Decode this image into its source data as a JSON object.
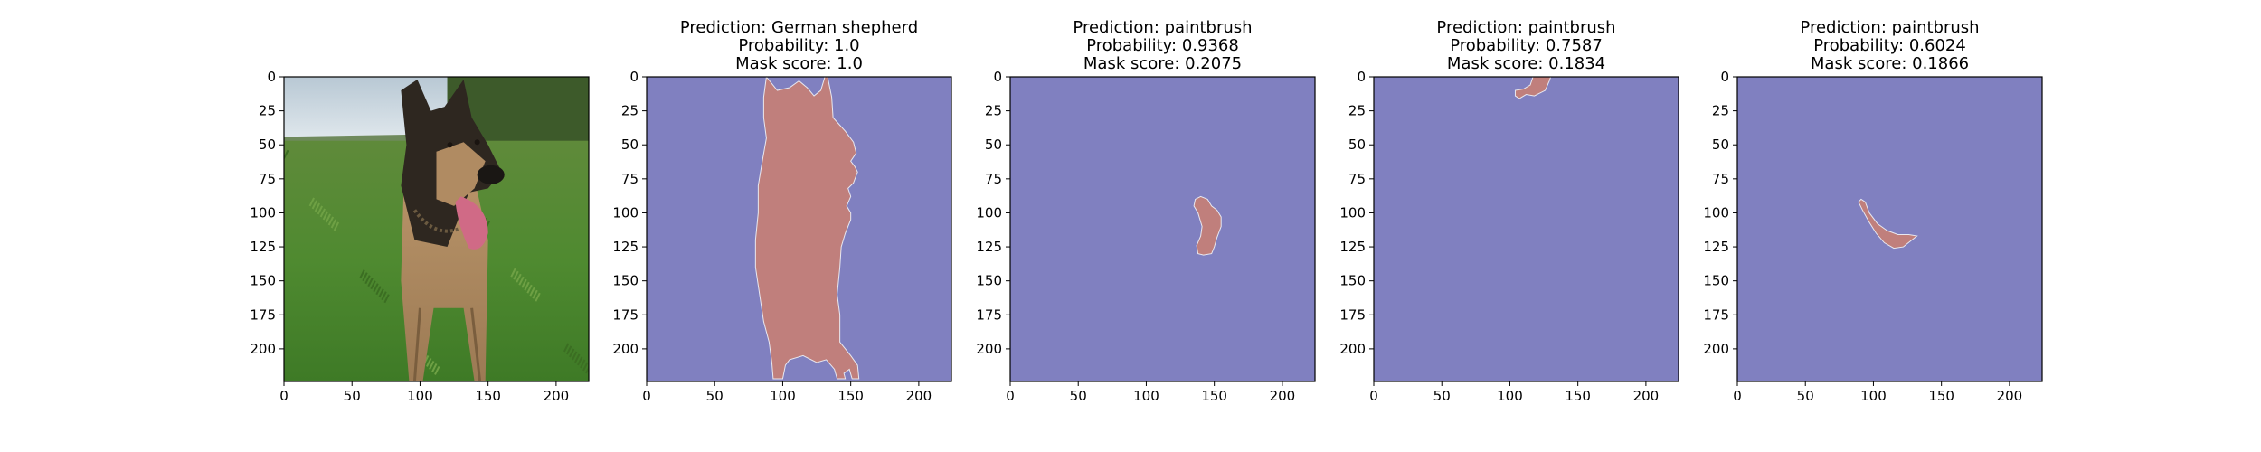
{
  "figure": {
    "panel_count": 5,
    "mask_background_color": "#8080c0",
    "mask_foreground_color": "#c07f7c",
    "axis_color": "#000000"
  },
  "chart_data": [
    {
      "type": "image",
      "subject": "german-shepherd-photo",
      "title_lines": [],
      "xlim": [
        0,
        224
      ],
      "ylim": [
        224,
        0
      ],
      "xticks": [
        0,
        50,
        100,
        150,
        200
      ],
      "yticks": [
        0,
        25,
        50,
        75,
        100,
        125,
        150,
        175,
        200
      ]
    },
    {
      "type": "heatmap",
      "title_lines": [
        "Prediction: German shepherd",
        "Probability: 1.0",
        "Mask score: 1.0"
      ],
      "xlim": [
        0,
        224
      ],
      "ylim": [
        224,
        0
      ],
      "xticks": [
        0,
        50,
        100,
        150,
        200
      ],
      "yticks": [
        0,
        25,
        50,
        75,
        100,
        125,
        150,
        175,
        200
      ],
      "mask_outline": [
        [
          88,
          0
        ],
        [
          96,
          10
        ],
        [
          105,
          8
        ],
        [
          112,
          3
        ],
        [
          118,
          8
        ],
        [
          123,
          14
        ],
        [
          128,
          10
        ],
        [
          131,
          0
        ],
        [
          133,
          0
        ],
        [
          136,
          15
        ],
        [
          137,
          30
        ],
        [
          146,
          40
        ],
        [
          152,
          48
        ],
        [
          154,
          56
        ],
        [
          150,
          62
        ],
        [
          153,
          66
        ],
        [
          155,
          70
        ],
        [
          152,
          78
        ],
        [
          148,
          82
        ],
        [
          150,
          88
        ],
        [
          147,
          95
        ],
        [
          150,
          100
        ],
        [
          150,
          105
        ],
        [
          146,
          115
        ],
        [
          143,
          125
        ],
        [
          142,
          140
        ],
        [
          140,
          160
        ],
        [
          142,
          175
        ],
        [
          142,
          195
        ],
        [
          150,
          205
        ],
        [
          155,
          212
        ],
        [
          156,
          222
        ],
        [
          151,
          222
        ],
        [
          149,
          215
        ],
        [
          145,
          218
        ],
        [
          146,
          222
        ],
        [
          140,
          222
        ],
        [
          138,
          215
        ],
        [
          132,
          208
        ],
        [
          125,
          210
        ],
        [
          115,
          205
        ],
        [
          105,
          208
        ],
        [
          102,
          212
        ],
        [
          100,
          222
        ],
        [
          93,
          222
        ],
        [
          92,
          210
        ],
        [
          90,
          195
        ],
        [
          86,
          180
        ],
        [
          83,
          160
        ],
        [
          80,
          140
        ],
        [
          80,
          120
        ],
        [
          82,
          100
        ],
        [
          82,
          80
        ],
        [
          85,
          62
        ],
        [
          88,
          45
        ],
        [
          86,
          30
        ],
        [
          86,
          15
        ]
      ]
    },
    {
      "type": "heatmap",
      "title_lines": [
        "Prediction: paintbrush",
        "Probability: 0.9368",
        "Mask score: 0.2075"
      ],
      "xlim": [
        0,
        224
      ],
      "ylim": [
        224,
        0
      ],
      "xticks": [
        0,
        50,
        100,
        150,
        200
      ],
      "yticks": [
        0,
        25,
        50,
        75,
        100,
        125,
        150,
        175,
        200
      ],
      "mask_outline": [
        [
          136,
          90
        ],
        [
          140,
          88
        ],
        [
          145,
          90
        ],
        [
          148,
          95
        ],
        [
          152,
          98
        ],
        [
          155,
          103
        ],
        [
          155,
          110
        ],
        [
          152,
          118
        ],
        [
          150,
          125
        ],
        [
          148,
          130
        ],
        [
          142,
          131
        ],
        [
          138,
          130
        ],
        [
          137,
          124
        ],
        [
          140,
          117
        ],
        [
          141,
          110
        ],
        [
          138,
          100
        ],
        [
          135,
          95
        ]
      ]
    },
    {
      "type": "heatmap",
      "title_lines": [
        "Prediction: paintbrush",
        "Probability: 0.7587",
        "Mask score: 0.1834"
      ],
      "xlim": [
        0,
        224
      ],
      "ylim": [
        224,
        0
      ],
      "xticks": [
        0,
        50,
        100,
        150,
        200
      ],
      "yticks": [
        0,
        25,
        50,
        75,
        100,
        125,
        150,
        175,
        200
      ],
      "mask_outline": [
        [
          117,
          0
        ],
        [
          130,
          0
        ],
        [
          129,
          3
        ],
        [
          126,
          10
        ],
        [
          118,
          14
        ],
        [
          112,
          13
        ],
        [
          107,
          16
        ],
        [
          104,
          14
        ],
        [
          104,
          10
        ],
        [
          110,
          9
        ],
        [
          115,
          6
        ]
      ]
    },
    {
      "type": "heatmap",
      "title_lines": [
        "Prediction: paintbrush",
        "Probability: 0.6024",
        "Mask score: 0.1866"
      ],
      "xlim": [
        0,
        224
      ],
      "ylim": [
        224,
        0
      ],
      "xticks": [
        0,
        50,
        100,
        150,
        200
      ],
      "yticks": [
        0,
        25,
        50,
        75,
        100,
        125,
        150,
        175,
        200
      ],
      "mask_outline": [
        [
          91,
          90
        ],
        [
          94,
          92
        ],
        [
          97,
          100
        ],
        [
          103,
          108
        ],
        [
          110,
          113
        ],
        [
          118,
          116
        ],
        [
          126,
          116
        ],
        [
          132,
          117
        ],
        [
          127,
          121
        ],
        [
          122,
          125
        ],
        [
          115,
          126
        ],
        [
          108,
          122
        ],
        [
          102,
          115
        ],
        [
          97,
          107
        ],
        [
          92,
          98
        ],
        [
          89,
          92
        ]
      ]
    }
  ]
}
